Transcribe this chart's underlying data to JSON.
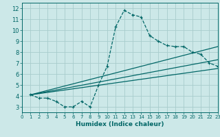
{
  "background_color": "#cce8e8",
  "grid_color": "#a8cccc",
  "line_color": "#006666",
  "xlabel": "Humidex (Indice chaleur)",
  "xlim": [
    0,
    23
  ],
  "ylim": [
    2.5,
    12.5
  ],
  "xticks": [
    0,
    1,
    2,
    3,
    4,
    5,
    6,
    7,
    8,
    9,
    10,
    11,
    12,
    13,
    14,
    15,
    16,
    17,
    18,
    19,
    20,
    21,
    22,
    23
  ],
  "yticks": [
    3,
    4,
    5,
    6,
    7,
    8,
    9,
    10,
    11,
    12
  ],
  "curve1_x": [
    1,
    2,
    3,
    4,
    5,
    6,
    7,
    8,
    9,
    10,
    11,
    12,
    13,
    14,
    15,
    16,
    17,
    18,
    19,
    20,
    21,
    22,
    23
  ],
  "curve1_y": [
    4.1,
    3.8,
    3.8,
    3.5,
    3.0,
    3.0,
    3.5,
    3.0,
    5.0,
    6.7,
    10.3,
    11.8,
    11.4,
    11.2,
    9.5,
    9.0,
    8.6,
    8.5,
    8.5,
    8.0,
    7.8,
    7.0,
    6.7
  ],
  "line1_x": [
    1,
    23
  ],
  "line1_y": [
    4.1,
    8.5
  ],
  "line2_x": [
    1,
    23
  ],
  "line2_y": [
    4.1,
    7.3
  ],
  "line3_x": [
    1,
    23
  ],
  "line3_y": [
    4.1,
    6.5
  ]
}
